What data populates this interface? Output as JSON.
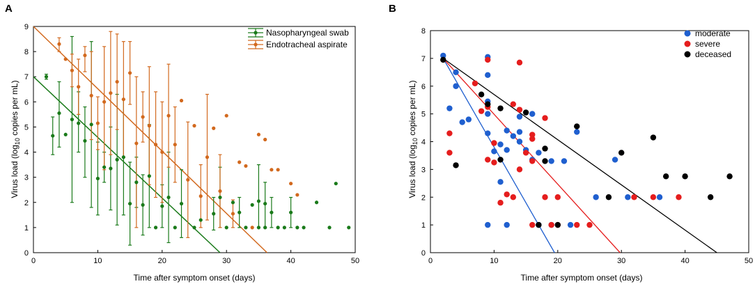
{
  "chart_data": [
    {
      "panel": "A",
      "type": "scatter",
      "xlabel": "Time after symptom onset (days)",
      "ylabel_pre": "Virus load (log",
      "ylabel_sub": "10",
      "ylabel_post": " copies per mL)",
      "xlim": [
        0,
        50
      ],
      "ylim": [
        0,
        9
      ],
      "xticks": [
        0,
        10,
        20,
        30,
        40,
        50
      ],
      "yticks": [
        0,
        1,
        2,
        3,
        4,
        5,
        6,
        7,
        8,
        9
      ],
      "legend_position": "top-right",
      "series": [
        {
          "name": "Nasopharyngeal swab",
          "color": "#1a7a1a",
          "points": [
            {
              "x": 2,
              "y": 7.0,
              "lo": 6.9,
              "hi": 7.1
            },
            {
              "x": 3,
              "y": 4.65,
              "lo": 3.9,
              "hi": 5.4
            },
            {
              "x": 4,
              "y": 5.55,
              "lo": 4.2,
              "hi": 6.8
            },
            {
              "x": 5,
              "y": 4.7
            },
            {
              "x": 6,
              "y": 5.3,
              "lo": 2.0,
              "hi": 8.6
            },
            {
              "x": 7,
              "y": 5.15,
              "lo": 4.0,
              "hi": 6.4
            },
            {
              "x": 8,
              "y": 4.45,
              "lo": 3.0,
              "hi": 5.8
            },
            {
              "x": 9,
              "y": 5.1,
              "lo": 1.8,
              "hi": 8.4
            },
            {
              "x": 10,
              "y": 2.95,
              "lo": 1.5,
              "hi": 4.4
            },
            {
              "x": 11,
              "y": 3.4,
              "lo": 2.8,
              "hi": 4.0
            },
            {
              "x": 12,
              "y": 3.35,
              "lo": 1.7,
              "hi": 5.0
            },
            {
              "x": 13,
              "y": 3.7,
              "lo": 1.1,
              "hi": 6.3
            },
            {
              "x": 14,
              "y": 3.8,
              "lo": 1.5,
              "hi": 6.1
            },
            {
              "x": 15,
              "y": 1.95,
              "lo": 0.3,
              "hi": 3.6
            },
            {
              "x": 16,
              "y": 2.8,
              "lo": 1.8,
              "hi": 3.8
            },
            {
              "x": 17,
              "y": 1.9,
              "lo": 0.7,
              "hi": 3.1
            },
            {
              "x": 18,
              "y": 3.05,
              "lo": 1.0,
              "hi": 5.1
            },
            {
              "x": 19,
              "y": 1.0
            },
            {
              "x": 20,
              "y": 1.85,
              "lo": 1.0,
              "hi": 2.7
            },
            {
              "x": 21,
              "y": 2.2,
              "lo": 0.4,
              "hi": 4.0
            },
            {
              "x": 22,
              "y": 1.0
            },
            {
              "x": 23,
              "y": 1.95,
              "lo": 0.6,
              "hi": 3.3
            },
            {
              "x": 25,
              "y": 1.0
            },
            {
              "x": 26,
              "y": 1.3
            },
            {
              "x": 28,
              "y": 1.55,
              "lo": 0.9,
              "hi": 2.2
            },
            {
              "x": 29,
              "y": 2.2,
              "lo": 1.0,
              "hi": 3.4
            },
            {
              "x": 30,
              "y": 1.0
            },
            {
              "x": 31,
              "y": 2.0
            },
            {
              "x": 32,
              "y": 1.6,
              "lo": 1.0,
              "hi": 2.2
            },
            {
              "x": 33,
              "y": 1.0
            },
            {
              "x": 34,
              "y": 1.9
            },
            {
              "x": 35,
              "y": 2.05,
              "lo": 1.0,
              "hi": 3.5
            },
            {
              "x": 35,
              "y": 1.0
            },
            {
              "x": 36,
              "y": 1.0
            },
            {
              "x": 36,
              "y": 1.95,
              "lo": 1.0,
              "hi": 2.8
            },
            {
              "x": 37,
              "y": 1.6,
              "lo": 1.0,
              "hi": 2.2
            },
            {
              "x": 38,
              "y": 1.0
            },
            {
              "x": 39,
              "y": 1.0
            },
            {
              "x": 40,
              "y": 1.6,
              "lo": 1.0,
              "hi": 2.2
            },
            {
              "x": 41,
              "y": 1.0
            },
            {
              "x": 42,
              "y": 1.0
            },
            {
              "x": 44,
              "y": 2.0
            },
            {
              "x": 46,
              "y": 1.0
            },
            {
              "x": 47,
              "y": 2.75
            },
            {
              "x": 49,
              "y": 1.0
            }
          ],
          "fit": {
            "x0": 0,
            "y0": 7,
            "x1": 29,
            "y1": 0
          }
        },
        {
          "name": "Endotracheal aspirate",
          "color": "#d2691e",
          "points": [
            {
              "x": 4,
              "y": 8.3,
              "lo": 8.0,
              "hi": 8.55
            },
            {
              "x": 5,
              "y": 7.7
            },
            {
              "x": 6,
              "y": 7.25,
              "lo": 6.6,
              "hi": 7.9
            },
            {
              "x": 7,
              "y": 6.6,
              "lo": 5.5,
              "hi": 7.7
            },
            {
              "x": 8,
              "y": 7.85,
              "lo": 7.2,
              "hi": 8.2
            },
            {
              "x": 9,
              "y": 6.25,
              "lo": 4.5,
              "hi": 8.0
            },
            {
              "x": 10,
              "y": 5.15,
              "lo": 4.1,
              "hi": 6.2
            },
            {
              "x": 11,
              "y": 6.0,
              "lo": 3.3,
              "hi": 8.2
            },
            {
              "x": 12,
              "y": 6.35,
              "lo": 3.9,
              "hi": 8.8
            },
            {
              "x": 13,
              "y": 6.8,
              "lo": 4.9,
              "hi": 8.7
            },
            {
              "x": 14,
              "y": 6.1,
              "lo": 3.8,
              "hi": 8.4
            },
            {
              "x": 15,
              "y": 7.15,
              "lo": 5.9,
              "hi": 8.4
            },
            {
              "x": 16,
              "y": 4.35,
              "lo": 1.0,
              "hi": 7.0
            },
            {
              "x": 17,
              "y": 5.4,
              "lo": 4.4,
              "hi": 6.4
            },
            {
              "x": 18,
              "y": 5.05,
              "lo": 2.7,
              "hi": 7.4
            },
            {
              "x": 19,
              "y": 4.3,
              "lo": 2.2,
              "hi": 6.4
            },
            {
              "x": 20,
              "y": 4.0,
              "lo": 2.0,
              "hi": 6.0
            },
            {
              "x": 21,
              "y": 5.45,
              "lo": 3.4,
              "hi": 7.5
            },
            {
              "x": 22,
              "y": 4.3,
              "lo": 2.8,
              "hi": 5.8
            },
            {
              "x": 23,
              "y": 6.05
            },
            {
              "x": 24,
              "y": 2.9,
              "lo": 0.6,
              "hi": 5.2
            },
            {
              "x": 25,
              "y": 5.05
            },
            {
              "x": 26,
              "y": 2.25,
              "lo": 1.0,
              "hi": 3.5
            },
            {
              "x": 27,
              "y": 3.8,
              "lo": 1.3,
              "hi": 6.3
            },
            {
              "x": 28,
              "y": 4.95
            },
            {
              "x": 29,
              "y": 2.45,
              "lo": 1.0,
              "hi": 3.9
            },
            {
              "x": 30,
              "y": 5.45
            },
            {
              "x": 31,
              "y": 1.55,
              "lo": 1.0,
              "hi": 2.1
            },
            {
              "x": 32,
              "y": 3.6
            },
            {
              "x": 33,
              "y": 3.45
            },
            {
              "x": 34,
              "y": 1.0
            },
            {
              "x": 35,
              "y": 4.7
            },
            {
              "x": 36,
              "y": 4.5
            },
            {
              "x": 37,
              "y": 3.3
            },
            {
              "x": 38,
              "y": 3.3
            },
            {
              "x": 40,
              "y": 2.75
            },
            {
              "x": 41,
              "y": 2.3
            }
          ],
          "fit": {
            "x0": 0,
            "y0": 9,
            "x1": 36.3,
            "y1": 0
          }
        }
      ]
    },
    {
      "panel": "B",
      "type": "scatter",
      "xlabel": "Time after symptom onset (days)",
      "ylabel_pre": "Virus load (log",
      "ylabel_sub": "10",
      "ylabel_post": " copies per mL)",
      "xlim": [
        0,
        50
      ],
      "ylim": [
        0,
        8
      ],
      "xticks": [
        0,
        10,
        20,
        30,
        40,
        50
      ],
      "yticks": [
        0,
        1,
        2,
        3,
        4,
        5,
        6,
        7,
        8
      ],
      "legend_position": "top-right",
      "series": [
        {
          "name": "moderate",
          "color": "#1f5fcf",
          "points": [
            [
              2,
              7.1
            ],
            [
              3,
              5.2
            ],
            [
              4,
              6.5
            ],
            [
              4,
              6.0
            ],
            [
              5,
              4.7
            ],
            [
              6,
              4.8
            ],
            [
              9,
              7.05
            ],
            [
              9,
              6.4
            ],
            [
              9,
              5.45
            ],
            [
              9,
              5.0
            ],
            [
              9,
              4.3
            ],
            [
              9,
              1.0
            ],
            [
              10,
              3.65
            ],
            [
              11,
              3.9
            ],
            [
              11,
              2.55
            ],
            [
              12,
              4.4
            ],
            [
              12,
              3.7
            ],
            [
              12,
              1.0
            ],
            [
              13,
              4.2
            ],
            [
              14,
              4.9
            ],
            [
              14,
              4.35
            ],
            [
              14,
              4.0
            ],
            [
              15,
              3.7
            ],
            [
              16,
              5.0
            ],
            [
              16,
              3.35
            ],
            [
              17,
              3.6
            ],
            [
              17,
              1.0
            ],
            [
              19,
              3.3
            ],
            [
              19,
              1.0
            ],
            [
              21,
              3.3
            ],
            [
              22,
              1.0
            ],
            [
              23,
              4.35
            ],
            [
              26,
              2.0
            ],
            [
              31,
              2.0
            ],
            [
              29,
              3.35
            ],
            [
              36,
              2.0
            ]
          ],
          "fit": {
            "x0": 2,
            "y0": 7,
            "x1": 19.5,
            "y1": 0
          }
        },
        {
          "name": "severe",
          "color": "#e51d1d",
          "points": [
            [
              3,
              4.3
            ],
            [
              3,
              3.6
            ],
            [
              7,
              6.1
            ],
            [
              8,
              5.1
            ],
            [
              9,
              6.95
            ],
            [
              9,
              5.25
            ],
            [
              9,
              3.35
            ],
            [
              10,
              3.25
            ],
            [
              10,
              3.95
            ],
            [
              11,
              1.8
            ],
            [
              12,
              2.1
            ],
            [
              13,
              5.35
            ],
            [
              13,
              2.0
            ],
            [
              14,
              6.85
            ],
            [
              14,
              5.15
            ],
            [
              14,
              3.0
            ],
            [
              15,
              3.6
            ],
            [
              16,
              4.25
            ],
            [
              16,
              4.1
            ],
            [
              16,
              3.3
            ],
            [
              16,
              1.0
            ],
            [
              18,
              4.85
            ],
            [
              18,
              2.0
            ],
            [
              19,
              1.0
            ],
            [
              20,
              2.0
            ],
            [
              20,
              1.0
            ],
            [
              23,
              1.0
            ],
            [
              25,
              1.0
            ],
            [
              32,
              2.0
            ],
            [
              35,
              2.0
            ],
            [
              39,
              2.0
            ]
          ],
          "fit": {
            "x0": 2,
            "y0": 7,
            "x1": 29.8,
            "y1": 0
          }
        },
        {
          "name": "deceased",
          "color": "#000000",
          "points": [
            [
              2,
              6.95
            ],
            [
              4,
              3.15
            ],
            [
              8,
              5.7
            ],
            [
              9,
              5.35
            ],
            [
              11,
              5.2
            ],
            [
              11,
              3.35
            ],
            [
              15,
              5.05
            ],
            [
              17,
              1.0
            ],
            [
              18,
              3.75
            ],
            [
              18,
              3.3
            ],
            [
              20,
              1.0
            ],
            [
              23,
              4.55
            ],
            [
              28,
              2.0
            ],
            [
              30,
              3.6
            ],
            [
              35,
              4.15
            ],
            [
              37,
              2.75
            ],
            [
              40,
              2.75
            ],
            [
              44,
              2.0
            ],
            [
              47,
              2.75
            ]
          ],
          "fit": {
            "x0": 2,
            "y0": 7,
            "x1": 45,
            "y1": 0
          }
        }
      ]
    }
  ]
}
